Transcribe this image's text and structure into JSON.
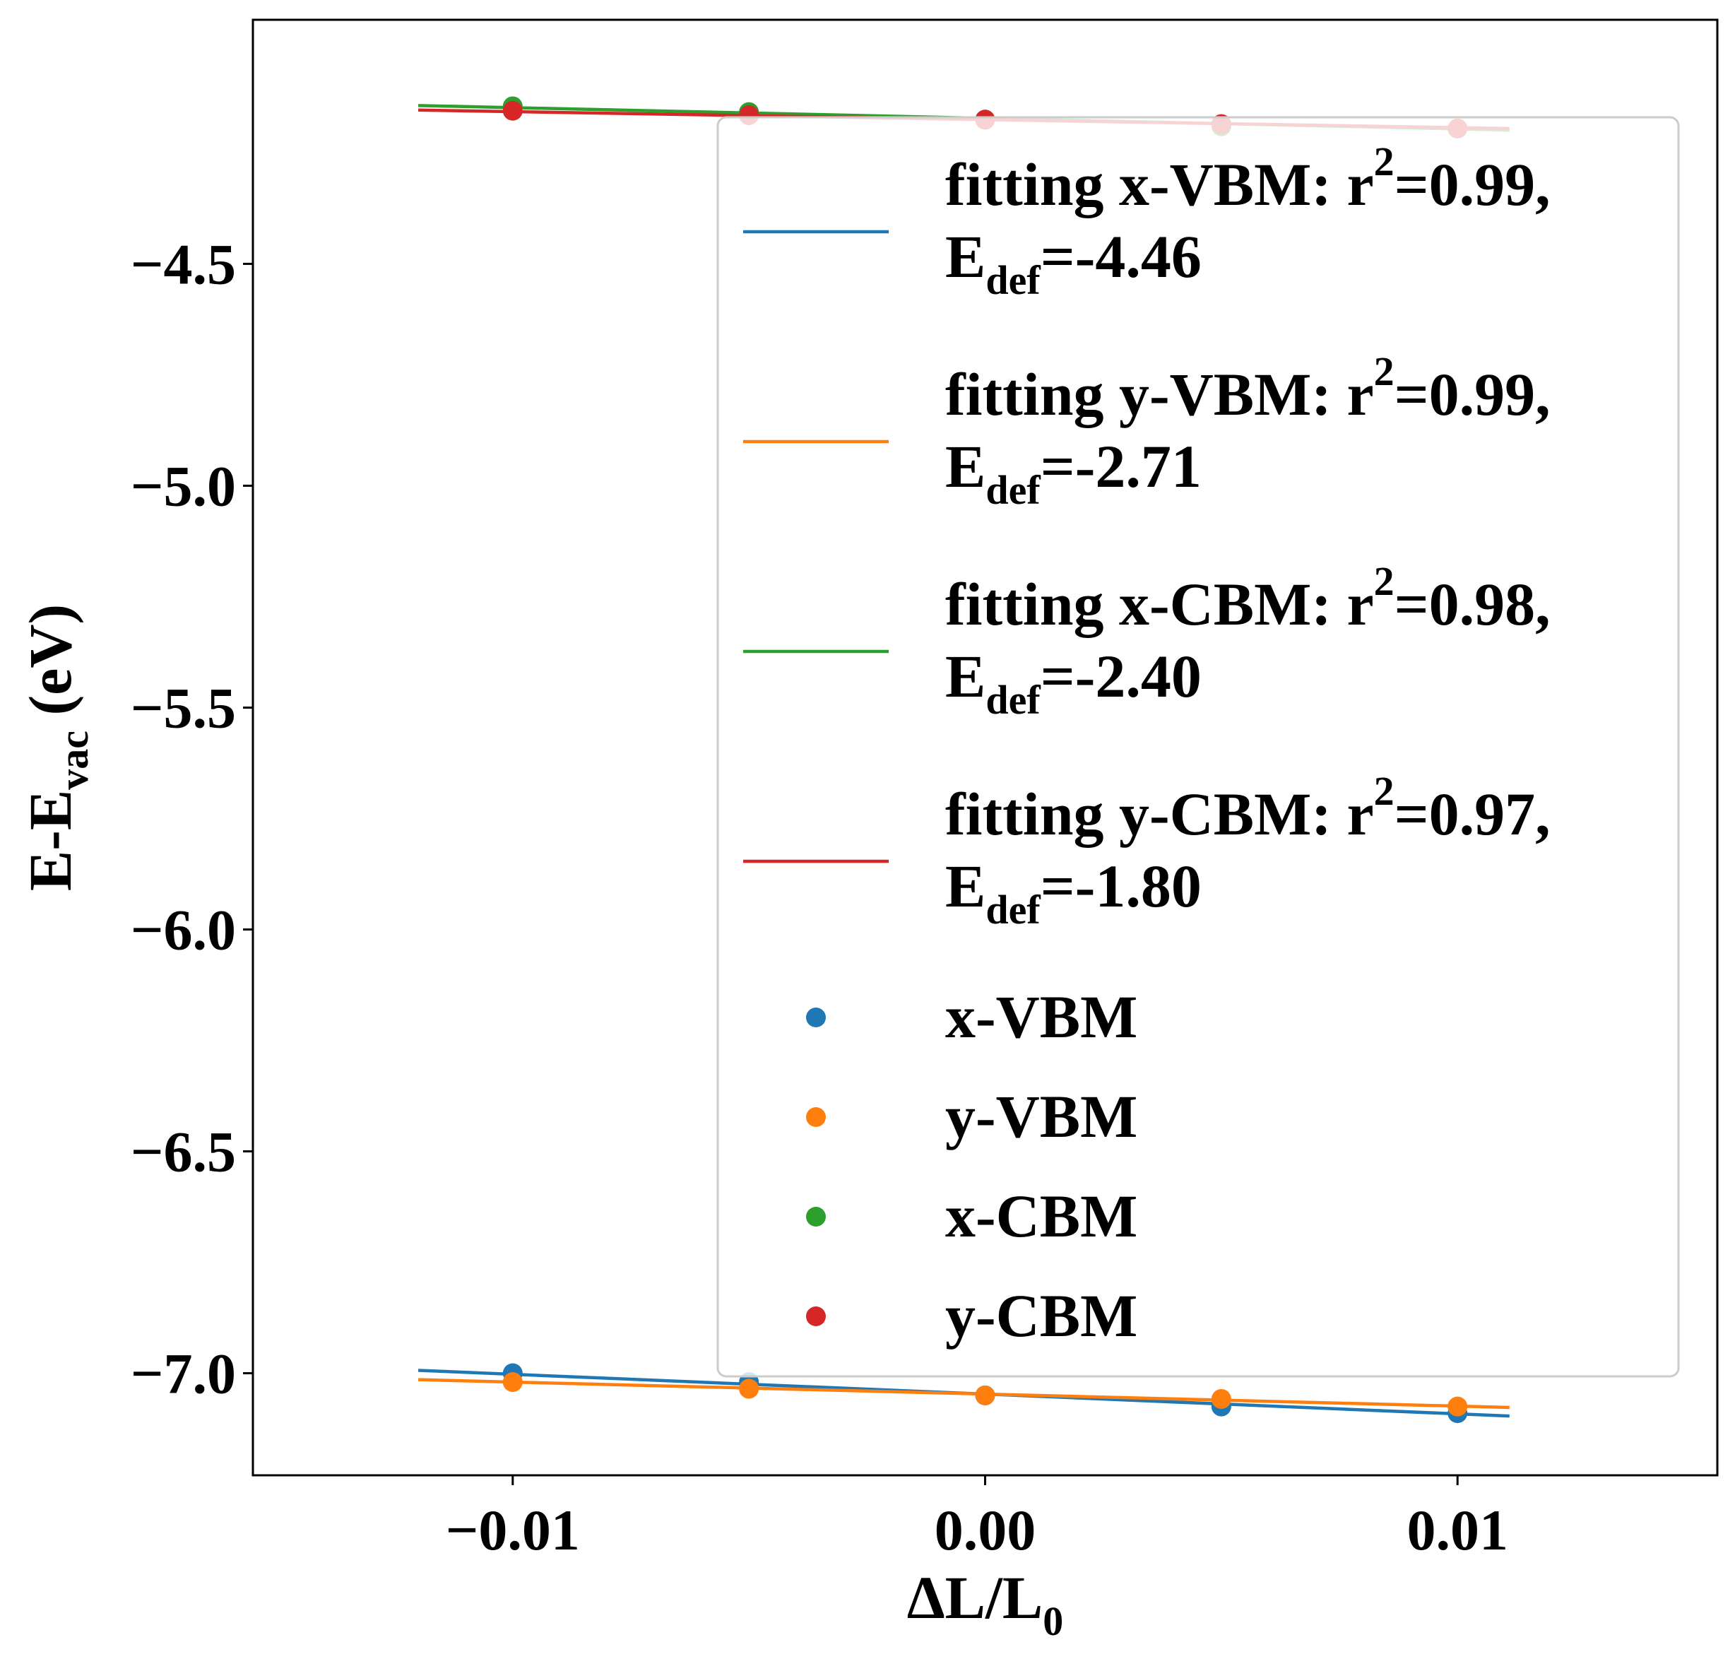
{
  "chart_data": {
    "type": "scatter",
    "xlabel": {
      "main": "ΔL/L",
      "sub": "0"
    },
    "ylabel": {
      "main": "E-E",
      "sub": "vac",
      "suffix": " (eV)"
    },
    "xlim": [
      -0.0155,
      0.0155
    ],
    "ylim": [
      -7.23,
      -3.95
    ],
    "xticks": [
      -0.01,
      0.0,
      0.01
    ],
    "xtick_labels": [
      "−0.01",
      "0.00",
      "0.01"
    ],
    "yticks": [
      -4.5,
      -5.0,
      -5.5,
      -6.0,
      -6.5,
      -7.0
    ],
    "ytick_labels": [
      "−4.5",
      "−5.0",
      "−5.5",
      "−6.0",
      "−6.5",
      "−7.0"
    ],
    "grid": false,
    "legend_position": "upper right",
    "fit_x_range": [
      -0.012,
      0.0111
    ],
    "series": [
      {
        "name": "x-VBM",
        "color": "#1f77b4",
        "x": [
          -0.01,
          -0.005,
          0.0,
          0.005,
          0.01
        ],
        "y": [
          -7.0,
          -7.02,
          -7.05,
          -7.075,
          -7.09
        ],
        "fit": {
          "label_line1": "fitting x-VBM: r",
          "sup": "2",
          "label_line1_end": "=0.99,",
          "label_line2": "E",
          "sub": "def",
          "label_line2_end": "=-4.46",
          "slope": -4.46,
          "intercept": -7.047
        }
      },
      {
        "name": "y-VBM",
        "color": "#ff7f0e",
        "x": [
          -0.01,
          -0.005,
          0.0,
          0.005,
          0.01
        ],
        "y": [
          -7.02,
          -7.035,
          -7.05,
          -7.058,
          -7.075
        ],
        "fit": {
          "label_line1": "fitting y-VBM: r",
          "sup": "2",
          "label_line1_end": "=0.99,",
          "label_line2": "E",
          "sub": "def",
          "label_line2_end": "=-2.71",
          "slope": -2.71,
          "intercept": -7.047
        }
      },
      {
        "name": "x-CBM",
        "color": "#2ca02c",
        "x": [
          -0.01,
          -0.005,
          0.0,
          0.005,
          0.01
        ],
        "y": [
          -4.145,
          -4.158,
          -4.175,
          -4.19,
          -4.195
        ],
        "fit": {
          "label_line1": "fitting x-CBM: r",
          "sup": "2",
          "label_line1_end": "=0.98,",
          "label_line2": "E",
          "sub": "def",
          "label_line2_end": "=-2.40",
          "slope": -2.4,
          "intercept": -4.172
        }
      },
      {
        "name": "y-CBM",
        "color": "#d62728",
        "x": [
          -0.01,
          -0.005,
          0.0,
          0.005,
          0.01
        ],
        "y": [
          -4.155,
          -4.165,
          -4.175,
          -4.185,
          -4.195
        ],
        "fit": {
          "label_line1": "fitting y-CBM: r",
          "sup": "2",
          "label_line1_end": "=0.97,",
          "label_line2": "E",
          "sub": "def",
          "label_line2_end": "=-1.80",
          "slope": -1.8,
          "intercept": -4.175
        }
      }
    ]
  }
}
